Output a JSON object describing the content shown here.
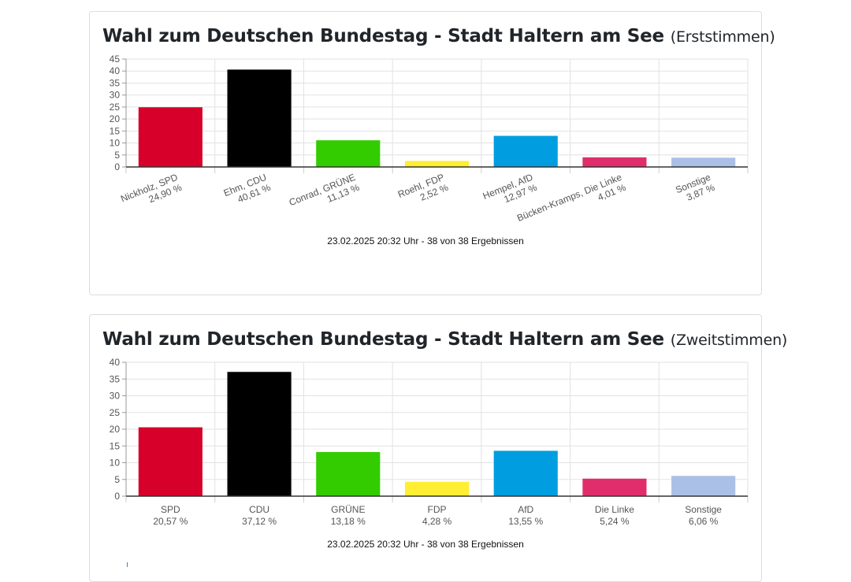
{
  "charts": [
    {
      "title_main": "Wahl zum Deutschen Bundestag - Stadt Haltern am See",
      "title_sub": "(Erststimmen)",
      "timestamp": "23.02.2025 20:32 Uhr - 38 von 38 Ergebnissen"
    },
    {
      "title_main": "Wahl zum Deutschen Bundestag - Stadt Haltern am See",
      "title_sub": "(Zweitstimmen)",
      "timestamp": "23.02.2025 20:32 Uhr - 38 von 38 Ergebnissen"
    }
  ],
  "chart_data": [
    {
      "type": "bar",
      "title": "Wahl zum Deutschen Bundestag - Stadt Haltern am See (Erststimmen)",
      "categories": [
        "Nickholz, SPD",
        "Ehm, CDU",
        "Conrad, GRÜNE",
        "Roehl, FDP",
        "Hempel, AfD",
        "Bücken-Kramps, Die Linke",
        "Sonstige"
      ],
      "value_labels": [
        "24,90 %",
        "40,61 %",
        "11,13 %",
        "2,52 %",
        "12,97 %",
        "4,01 %",
        "3,87 %"
      ],
      "values": [
        24.9,
        40.61,
        11.13,
        2.52,
        12.97,
        4.01,
        3.87
      ],
      "colors": [
        "#d7002a",
        "#000000",
        "#33cc00",
        "#ffee33",
        "#009ee0",
        "#df2e6b",
        "#abc0e6"
      ],
      "ylim": [
        0,
        45
      ],
      "yticks": [
        0,
        5,
        10,
        15,
        20,
        25,
        30,
        35,
        40,
        45
      ],
      "x_label_rotation": "rotated",
      "grid": true
    },
    {
      "type": "bar",
      "title": "Wahl zum Deutschen Bundestag - Stadt Haltern am See (Zweitstimmen)",
      "categories": [
        "SPD",
        "CDU",
        "GRÜNE",
        "FDP",
        "AfD",
        "Die Linke",
        "Sonstige"
      ],
      "value_labels": [
        "20,57 %",
        "37,12 %",
        "13,18 %",
        "4,28 %",
        "13,55 %",
        "5,24 %",
        "6,06 %"
      ],
      "values": [
        20.57,
        37.12,
        13.18,
        4.28,
        13.55,
        5.24,
        6.06
      ],
      "colors": [
        "#d7002a",
        "#000000",
        "#33cc00",
        "#ffee33",
        "#009ee0",
        "#df2e6b",
        "#abc0e6"
      ],
      "ylim": [
        0,
        40
      ],
      "yticks": [
        0,
        5,
        10,
        15,
        20,
        25,
        30,
        35,
        40
      ],
      "x_label_rotation": "horizontal",
      "grid": true
    }
  ]
}
